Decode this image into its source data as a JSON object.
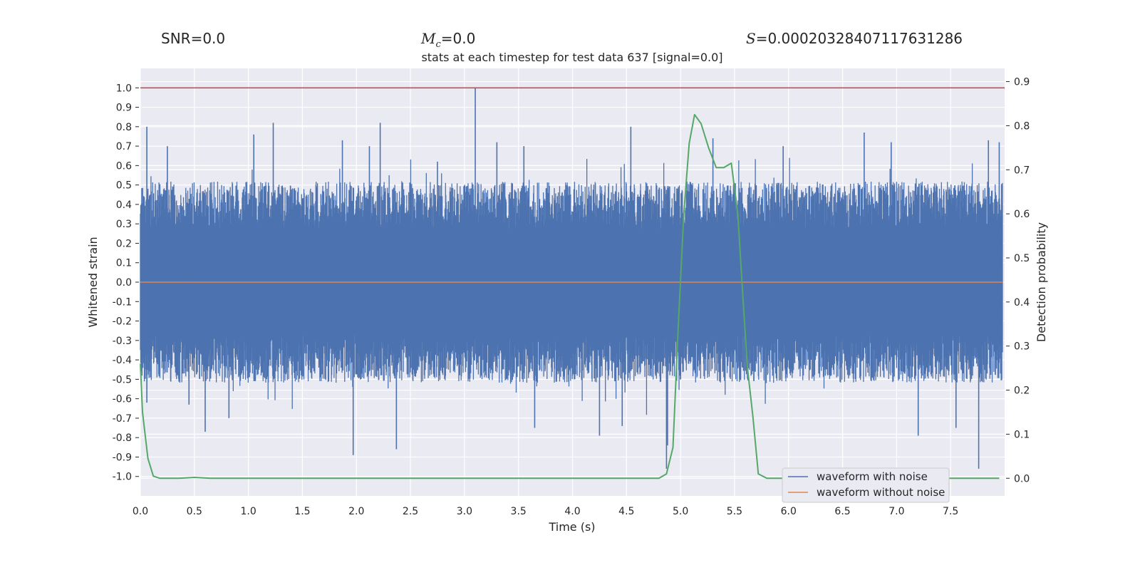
{
  "header": {
    "snr_label": "SNR",
    "snr_value": "=0.0",
    "mc_symbol": "M",
    "mc_sub": "c",
    "mc_value": "=0.0",
    "s_symbol": "S",
    "s_value": "=0.00020328407117631286"
  },
  "chart_data": {
    "type": "line",
    "title": "stats at each timestep for test data 637 [signal=0.0]",
    "xlabel": "Time (s)",
    "ylabel": "Whitened strain",
    "y2label": "Detection probability",
    "xlim": [
      0.0,
      8.0
    ],
    "ylim": [
      -1.1,
      1.1
    ],
    "y2lim": [
      -0.04,
      0.93
    ],
    "xticks": [
      "0.0",
      "0.5",
      "1.0",
      "1.5",
      "2.0",
      "2.5",
      "3.0",
      "3.5",
      "4.0",
      "4.5",
      "5.0",
      "5.5",
      "6.0",
      "6.5",
      "7.0",
      "7.5"
    ],
    "yticks": [
      "1.0",
      "0.9",
      "0.8",
      "0.7",
      "0.6",
      "0.5",
      "0.4",
      "0.3",
      "0.2",
      "0.1",
      "0.0",
      "-0.1",
      "-0.2",
      "-0.3",
      "-0.4",
      "-0.5",
      "-0.6",
      "-0.7",
      "-0.8",
      "-0.9",
      "-1.0"
    ],
    "y2ticks": [
      "0.9",
      "0.8",
      "0.7",
      "0.6",
      "0.5",
      "0.4",
      "0.3",
      "0.2",
      "0.1",
      "0.0"
    ],
    "grid": true,
    "legend_position": "lower-right",
    "colors": {
      "noisy": "#4c72b0",
      "clean": "#dd8452",
      "prob": "#55a868",
      "threshold": "#c44e52",
      "background": "#eaeaf2",
      "grid": "#ffffff"
    },
    "noise_envelope": {
      "upper_max": 1.0,
      "lower_min": -0.96,
      "typical_abs": 0.45
    },
    "series": [
      {
        "name": "waveform with noise",
        "key": "noisy"
      },
      {
        "name": "waveform without noise",
        "key": "clean",
        "value": 0.0
      }
    ],
    "threshold": {
      "key": "threshold",
      "value": 1.0
    },
    "detection_probability": {
      "key": "prob",
      "x": [
        0.0,
        0.02,
        0.07,
        0.12,
        0.18,
        0.25,
        0.35,
        0.5,
        0.65,
        0.8,
        1.0,
        2.0,
        3.0,
        4.0,
        4.5,
        4.8,
        4.87,
        4.93,
        4.98,
        5.03,
        5.08,
        5.13,
        5.19,
        5.26,
        5.33,
        5.4,
        5.47,
        5.53,
        5.58,
        5.62,
        5.67,
        5.72,
        5.8,
        6.0,
        7.0,
        7.95
      ],
      "y": [
        0.26,
        0.15,
        0.045,
        0.005,
        0.0,
        0.0,
        0.0,
        0.002,
        0.0,
        0.0,
        0.0,
        0.0,
        0.0,
        0.0,
        0.0,
        0.0,
        0.01,
        0.07,
        0.35,
        0.6,
        0.76,
        0.825,
        0.805,
        0.75,
        0.705,
        0.705,
        0.715,
        0.6,
        0.4,
        0.25,
        0.14,
        0.01,
        0.0,
        0.0,
        0.0,
        0.0
      ]
    },
    "spikes": [
      {
        "x": 0.06,
        "y": 0.8
      },
      {
        "x": 0.06,
        "y": -0.62
      },
      {
        "x": 0.25,
        "y": 0.7
      },
      {
        "x": 0.45,
        "y": -0.63
      },
      {
        "x": 0.6,
        "y": -0.77
      },
      {
        "x": 0.82,
        "y": -0.7
      },
      {
        "x": 1.05,
        "y": 0.76
      },
      {
        "x": 1.23,
        "y": 0.82
      },
      {
        "x": 1.87,
        "y": 0.73
      },
      {
        "x": 1.97,
        "y": -0.89
      },
      {
        "x": 2.12,
        "y": 0.7
      },
      {
        "x": 2.22,
        "y": 0.82
      },
      {
        "x": 2.37,
        "y": -0.86
      },
      {
        "x": 2.75,
        "y": 0.62
      },
      {
        "x": 3.1,
        "y": 1.0
      },
      {
        "x": 3.3,
        "y": 0.72
      },
      {
        "x": 3.55,
        "y": 0.7
      },
      {
        "x": 3.65,
        "y": -0.75
      },
      {
        "x": 4.25,
        "y": -0.79
      },
      {
        "x": 4.46,
        "y": -0.74
      },
      {
        "x": 4.54,
        "y": 0.8
      },
      {
        "x": 4.87,
        "y": -0.96
      },
      {
        "x": 4.88,
        "y": -0.84
      },
      {
        "x": 5.3,
        "y": 0.74
      },
      {
        "x": 5.95,
        "y": 0.7
      },
      {
        "x": 6.7,
        "y": 0.77
      },
      {
        "x": 6.95,
        "y": 0.72
      },
      {
        "x": 7.2,
        "y": -0.79
      },
      {
        "x": 7.55,
        "y": -0.75
      },
      {
        "x": 7.76,
        "y": -0.96
      },
      {
        "x": 7.85,
        "y": 0.73
      },
      {
        "x": 7.95,
        "y": 0.72
      }
    ]
  }
}
